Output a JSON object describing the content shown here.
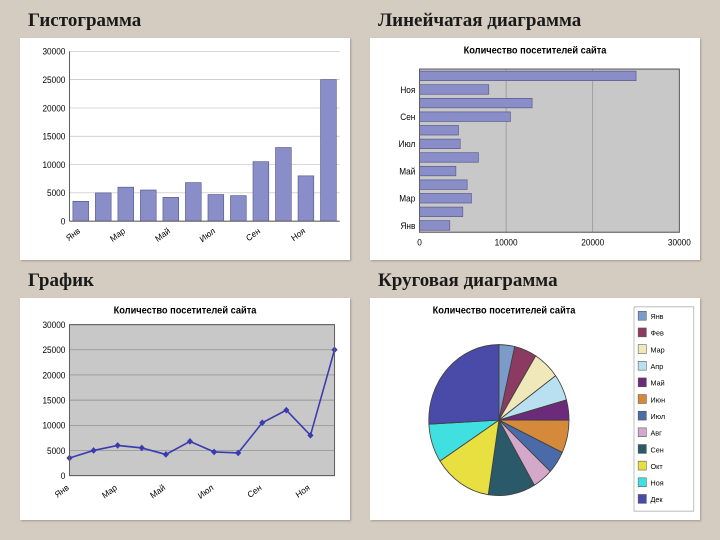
{
  "page": {
    "background": "#d4ccc0"
  },
  "histogram": {
    "title": "Гистограмма",
    "type": "bar",
    "ylim": [
      0,
      30000
    ],
    "ytick_step": 5000,
    "yticks": [
      "0",
      "5000",
      "10000",
      "15000",
      "20000",
      "25000",
      "30000"
    ],
    "categories": [
      "Янв",
      "Мар",
      "Май",
      "Июл",
      "Сен",
      "Ноя"
    ],
    "values": [
      3500,
      5000,
      6000,
      5500,
      4200,
      6800,
      4700,
      4500,
      10500,
      13000,
      8000,
      25000
    ],
    "bar_color": "#8a8ec8",
    "bar_border": "#555588",
    "grid_color": "#c0c0c0",
    "axis_color": "#606060",
    "bar_width": 0.7,
    "title_fontsize": 19,
    "tick_fontsize": 8
  },
  "hbar": {
    "title": "Линейчатая диаграмма",
    "chart_title": "Количество посетителей сайта",
    "type": "hbar",
    "xlim": [
      0,
      30000
    ],
    "xtick_step": 10000,
    "xticks": [
      "0",
      "10000",
      "20000",
      "30000"
    ],
    "categories": [
      "Янв",
      "Мар",
      "Май",
      "Июл",
      "Сен",
      "Ноя"
    ],
    "values": [
      3500,
      5000,
      6000,
      5500,
      4200,
      6800,
      4700,
      4500,
      10500,
      13000,
      8000,
      25000
    ],
    "bar_color": "#8a8ec8",
    "bar_border": "#555588",
    "plot_bg": "#c8c8c8",
    "grid_color": "#888888",
    "axis_color": "#606060",
    "bar_width": 0.7,
    "title_fontsize": 19,
    "chart_title_fontsize": 9,
    "tick_fontsize": 8
  },
  "line": {
    "title": "График",
    "chart_title": "Количество посетителей сайта",
    "type": "line",
    "ylim": [
      0,
      30000
    ],
    "ytick_step": 5000,
    "yticks": [
      "0",
      "5000",
      "10000",
      "15000",
      "20000",
      "25000",
      "30000"
    ],
    "categories": [
      "Янв",
      "Мар",
      "Май",
      "Июл",
      "Сен",
      "Ноя"
    ],
    "values": [
      3500,
      5000,
      6000,
      5500,
      4200,
      6800,
      4700,
      4500,
      10500,
      13000,
      8000,
      25000
    ],
    "line_color": "#3b3bb0",
    "marker_color": "#3b3bb0",
    "marker_shape": "diamond",
    "marker_size": 6,
    "line_width": 1.5,
    "plot_bg": "#c8c8c8",
    "grid_color": "#888888",
    "axis_color": "#606060",
    "title_fontsize": 19,
    "chart_title_fontsize": 9,
    "tick_fontsize": 8
  },
  "pie": {
    "title": "Круговая диаграмма",
    "chart_title": "Количество посетителей сайта",
    "type": "pie",
    "legend_labels": [
      "Янв",
      "Фев",
      "Мар",
      "Апр",
      "Май",
      "Июн",
      "Июл",
      "Авг",
      "Сен",
      "Окт",
      "Ноя",
      "Дек"
    ],
    "values": [
      3500,
      5000,
      6000,
      5500,
      4200,
      6800,
      4700,
      4500,
      10500,
      13000,
      8000,
      25000
    ],
    "colors": [
      "#7b9bc9",
      "#8b3a62",
      "#f0e8b8",
      "#b8e0f0",
      "#6b2a7a",
      "#d48a3a",
      "#4a6aa8",
      "#d4a8c8",
      "#2a5a6a",
      "#e8e040",
      "#40e0e0",
      "#4a4aa8"
    ],
    "slice_border": "#404040",
    "title_fontsize": 19,
    "chart_title_fontsize": 9,
    "legend_fontsize": 7
  }
}
